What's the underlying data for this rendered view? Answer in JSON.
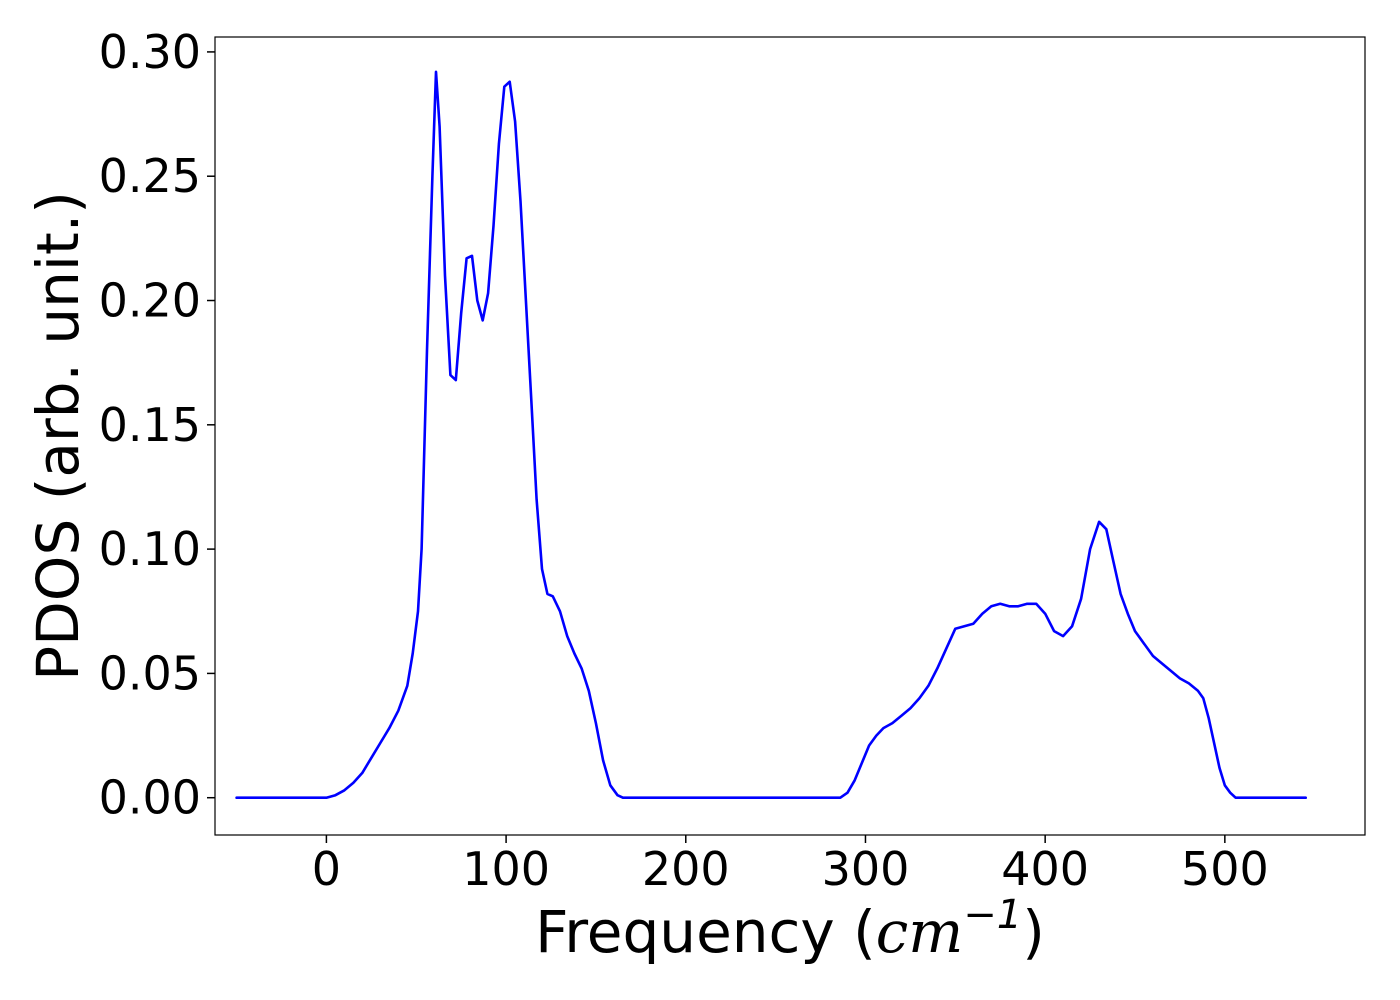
{
  "chart_data": {
    "type": "line",
    "title": "",
    "xlabel": {
      "prefix": "Frequency (",
      "var": "cm",
      "sup": "−1",
      "suffix": ")"
    },
    "ylabel": "PDOS (arb. unit.)",
    "xlim": [
      -62,
      578
    ],
    "ylim": [
      -0.015,
      0.306
    ],
    "xticks": [
      0,
      100,
      200,
      300,
      400,
      500
    ],
    "xtick_labels": [
      "0",
      "100",
      "200",
      "300",
      "400",
      "500"
    ],
    "yticks": [
      0.0,
      0.05,
      0.1,
      0.15,
      0.2,
      0.25,
      0.3
    ],
    "ytick_labels": [
      "0.00",
      "0.05",
      "0.10",
      "0.15",
      "0.20",
      "0.25",
      "0.30"
    ],
    "grid": false,
    "legend": "none",
    "series": [
      {
        "color": "#0000ff",
        "x": [
          -50,
          0,
          5,
          10,
          15,
          20,
          25,
          30,
          35,
          40,
          45,
          48,
          51,
          53,
          56,
          59,
          61,
          63,
          66,
          69,
          72,
          75,
          78,
          81,
          84,
          87,
          90,
          93,
          96,
          99,
          102,
          105,
          108,
          111,
          114,
          117,
          120,
          123,
          126,
          130,
          134,
          138,
          142,
          146,
          150,
          154,
          158,
          162,
          165,
          168,
          172,
          180,
          200,
          250,
          286,
          290,
          294,
          298,
          302,
          306,
          310,
          315,
          320,
          325,
          330,
          335,
          340,
          345,
          350,
          355,
          360,
          365,
          370,
          375,
          380,
          385,
          390,
          395,
          400,
          405,
          410,
          415,
          420,
          425,
          430,
          434,
          438,
          442,
          446,
          450,
          455,
          460,
          465,
          470,
          475,
          480,
          485,
          488,
          491,
          494,
          497,
          500,
          503,
          506,
          510,
          520,
          545
        ],
        "y": [
          0.0,
          0.0,
          0.001,
          0.003,
          0.006,
          0.01,
          0.016,
          0.022,
          0.028,
          0.035,
          0.045,
          0.058,
          0.075,
          0.1,
          0.18,
          0.25,
          0.292,
          0.27,
          0.21,
          0.17,
          0.168,
          0.195,
          0.217,
          0.218,
          0.2,
          0.192,
          0.203,
          0.23,
          0.263,
          0.286,
          0.288,
          0.272,
          0.24,
          0.2,
          0.16,
          0.12,
          0.092,
          0.082,
          0.081,
          0.075,
          0.065,
          0.058,
          0.052,
          0.043,
          0.03,
          0.015,
          0.005,
          0.001,
          0.0,
          0.0,
          0.0,
          0.0,
          0.0,
          0.0,
          0.0,
          0.002,
          0.007,
          0.014,
          0.021,
          0.025,
          0.028,
          0.03,
          0.033,
          0.036,
          0.04,
          0.045,
          0.052,
          0.06,
          0.068,
          0.069,
          0.07,
          0.074,
          0.077,
          0.078,
          0.077,
          0.077,
          0.078,
          0.078,
          0.074,
          0.067,
          0.065,
          0.069,
          0.08,
          0.1,
          0.111,
          0.108,
          0.095,
          0.082,
          0.074,
          0.067,
          0.062,
          0.057,
          0.054,
          0.051,
          0.048,
          0.046,
          0.043,
          0.04,
          0.032,
          0.022,
          0.012,
          0.005,
          0.002,
          0.0,
          0.0,
          0.0,
          0.0
        ]
      }
    ]
  }
}
